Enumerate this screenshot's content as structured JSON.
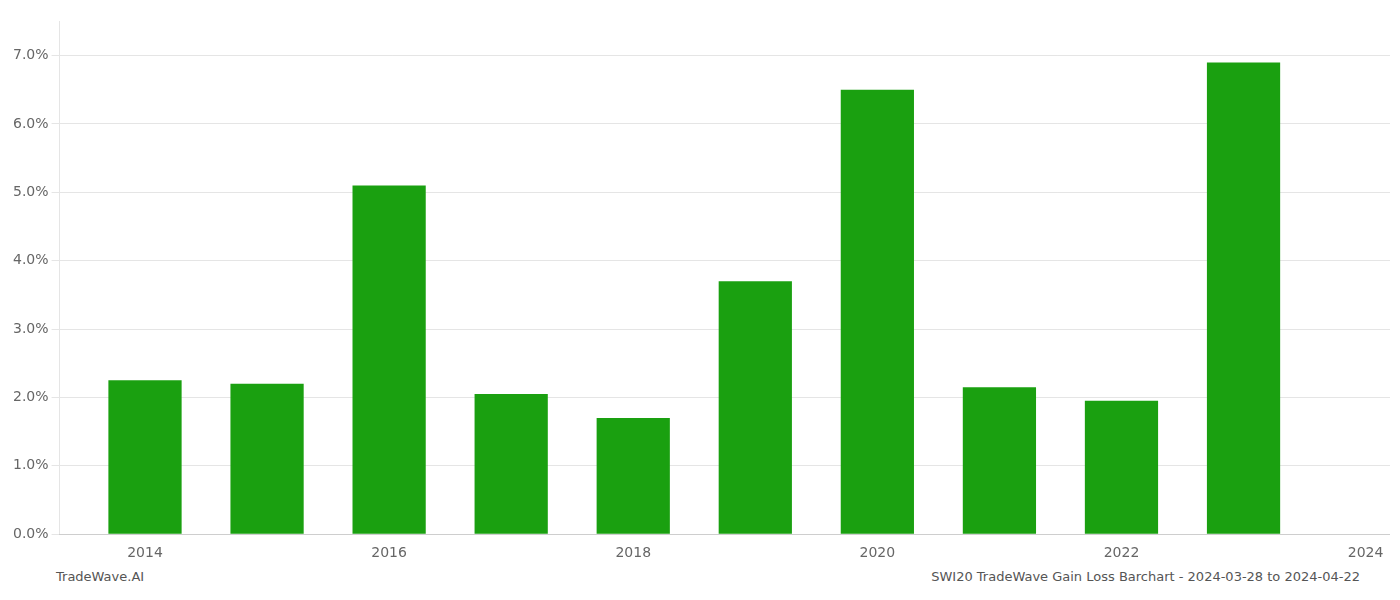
{
  "chart_data": {
    "type": "bar",
    "x": [
      2014,
      2015,
      2016,
      2017,
      2018,
      2019,
      2020,
      2021,
      2022,
      2023
    ],
    "values": [
      0.0225,
      0.022,
      0.051,
      0.0205,
      0.017,
      0.037,
      0.065,
      0.0215,
      0.0195,
      0.069
    ],
    "color": "#1aa010",
    "xlim": [
      2013.3,
      2024.2
    ],
    "xticks": [
      2014,
      2016,
      2018,
      2020,
      2022,
      2024
    ],
    "ylim": [
      0,
      0.075
    ],
    "yticks": [
      {
        "value": 0.0,
        "label": "0.0%"
      },
      {
        "value": 0.01,
        "label": "1.0%"
      },
      {
        "value": 0.02,
        "label": "2.0%"
      },
      {
        "value": 0.03,
        "label": "3.0%"
      },
      {
        "value": 0.04,
        "label": "4.0%"
      },
      {
        "value": 0.05,
        "label": "5.0%"
      },
      {
        "value": 0.06,
        "label": "6.0%"
      },
      {
        "value": 0.07,
        "label": "7.0%"
      }
    ],
    "grid": "y",
    "annotations": [
      "TradeWave.AI",
      "SWI20 TradeWave Gain Loss Barchart - 2024-03-28 to 2024-04-22"
    ]
  }
}
